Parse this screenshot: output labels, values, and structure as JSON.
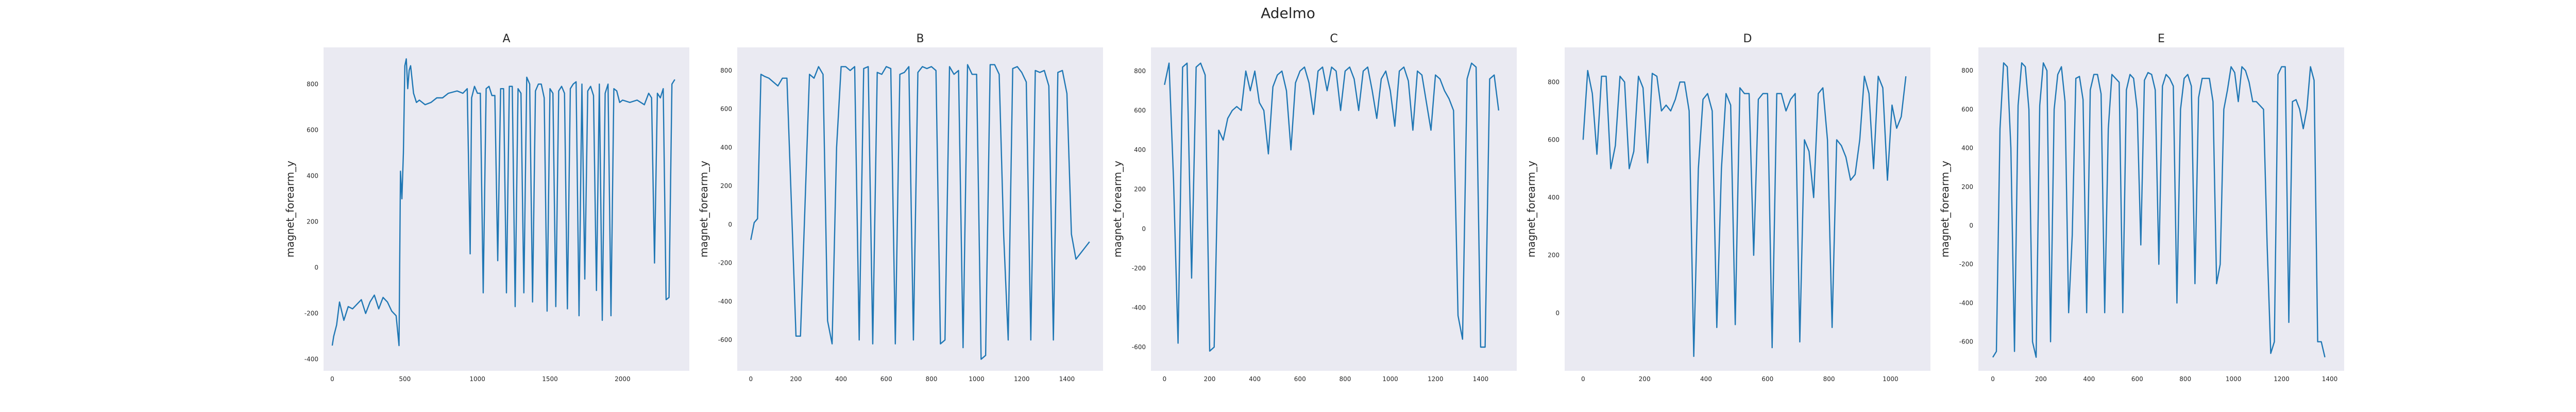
{
  "figure_title": "Adelmo",
  "colors": {
    "panel_bg": "#eaeaf2",
    "line": "#1f77b4",
    "text": "#262626"
  },
  "chart_data": [
    {
      "type": "line",
      "title": "A",
      "xlabel": "",
      "ylabel": "magnet_forearm_y",
      "grid": false,
      "xlim": [
        -60,
        2460
      ],
      "ylim": [
        -450,
        960
      ],
      "xticks": [
        0,
        500,
        1000,
        1500,
        2000
      ],
      "yticks": [
        -400,
        -200,
        0,
        200,
        400,
        600,
        800
      ],
      "x": [
        0,
        10,
        30,
        50,
        80,
        110,
        140,
        170,
        200,
        230,
        260,
        290,
        320,
        350,
        380,
        410,
        440,
        460,
        470,
        480,
        490,
        500,
        510,
        520,
        530,
        540,
        560,
        580,
        600,
        640,
        680,
        720,
        760,
        800,
        860,
        900,
        930,
        950,
        960,
        980,
        1000,
        1020,
        1040,
        1060,
        1080,
        1100,
        1120,
        1140,
        1160,
        1180,
        1200,
        1220,
        1240,
        1260,
        1280,
        1300,
        1320,
        1340,
        1360,
        1380,
        1400,
        1420,
        1440,
        1460,
        1480,
        1500,
        1520,
        1540,
        1560,
        1580,
        1600,
        1620,
        1640,
        1660,
        1680,
        1700,
        1720,
        1740,
        1760,
        1780,
        1800,
        1820,
        1840,
        1860,
        1880,
        1900,
        1920,
        1940,
        1960,
        1980,
        2000,
        2050,
        2100,
        2150,
        2180,
        2200,
        2220,
        2240,
        2260,
        2280,
        2300,
        2320,
        2340,
        2360
      ],
      "y": [
        -340,
        -300,
        -250,
        -150,
        -230,
        -170,
        -180,
        -160,
        -140,
        -200,
        -150,
        -120,
        -180,
        -130,
        -150,
        -190,
        -210,
        -340,
        420,
        300,
        500,
        880,
        910,
        780,
        860,
        880,
        760,
        720,
        730,
        710,
        720,
        740,
        740,
        760,
        770,
        760,
        780,
        60,
        740,
        790,
        760,
        760,
        -110,
        780,
        790,
        750,
        750,
        30,
        780,
        780,
        -110,
        790,
        790,
        -170,
        780,
        760,
        -110,
        830,
        800,
        -150,
        770,
        800,
        800,
        740,
        -190,
        780,
        760,
        -170,
        770,
        790,
        760,
        -180,
        780,
        800,
        810,
        -210,
        800,
        -50,
        770,
        790,
        750,
        -100,
        800,
        -230,
        760,
        800,
        -210,
        780,
        770,
        720,
        730,
        720,
        730,
        710,
        760,
        740,
        20,
        760,
        740,
        780,
        -140,
        -130,
        800,
        820
      ]
    },
    {
      "type": "line",
      "title": "B",
      "xlabel": "",
      "ylabel": "magnet_forearm_y",
      "grid": false,
      "xlim": [
        -60,
        1560
      ],
      "ylim": [
        -760,
        920
      ],
      "xticks": [
        0,
        200,
        400,
        600,
        800,
        1000,
        1200,
        1400
      ],
      "yticks": [
        -600,
        -400,
        -200,
        0,
        200,
        400,
        600,
        800
      ],
      "x": [
        0,
        15,
        30,
        45,
        60,
        80,
        100,
        120,
        140,
        160,
        180,
        200,
        220,
        240,
        260,
        280,
        300,
        320,
        340,
        360,
        380,
        400,
        420,
        440,
        460,
        480,
        500,
        520,
        540,
        560,
        580,
        600,
        620,
        640,
        660,
        680,
        700,
        720,
        740,
        760,
        780,
        800,
        820,
        840,
        860,
        880,
        900,
        920,
        940,
        960,
        980,
        1000,
        1020,
        1040,
        1060,
        1080,
        1100,
        1120,
        1140,
        1160,
        1180,
        1200,
        1220,
        1240,
        1260,
        1280,
        1300,
        1320,
        1340,
        1360,
        1380,
        1400,
        1420,
        1440,
        1460,
        1480,
        1500
      ],
      "y": [
        -80,
        10,
        30,
        780,
        770,
        760,
        740,
        720,
        760,
        760,
        100,
        -580,
        -580,
        100,
        780,
        760,
        820,
        780,
        -500,
        -620,
        400,
        820,
        820,
        800,
        820,
        -600,
        810,
        820,
        -620,
        790,
        780,
        820,
        810,
        -620,
        780,
        790,
        820,
        -600,
        790,
        820,
        810,
        820,
        800,
        -620,
        -600,
        820,
        780,
        800,
        -640,
        830,
        780,
        780,
        -700,
        -680,
        830,
        830,
        780,
        -60,
        -600,
        810,
        820,
        790,
        740,
        -600,
        800,
        790,
        800,
        720,
        -600,
        790,
        800,
        680,
        -50,
        -180,
        -150,
        -120,
        -90
      ]
    },
    {
      "type": "line",
      "title": "C",
      "xlabel": "",
      "ylabel": "magnet_forearm_y",
      "grid": false,
      "xlim": [
        -60,
        1560
      ],
      "ylim": [
        -720,
        920
      ],
      "xticks": [
        0,
        200,
        400,
        600,
        800,
        1000,
        1200,
        1400
      ],
      "yticks": [
        -600,
        -400,
        -200,
        0,
        200,
        400,
        600,
        800
      ],
      "x": [
        0,
        20,
        40,
        60,
        80,
        100,
        120,
        140,
        160,
        180,
        200,
        220,
        240,
        260,
        280,
        300,
        320,
        340,
        360,
        380,
        400,
        420,
        440,
        460,
        480,
        500,
        520,
        540,
        560,
        580,
        600,
        620,
        640,
        660,
        680,
        700,
        720,
        740,
        760,
        780,
        800,
        820,
        840,
        860,
        880,
        900,
        920,
        940,
        960,
        980,
        1000,
        1020,
        1040,
        1060,
        1080,
        1100,
        1120,
        1140,
        1160,
        1180,
        1200,
        1220,
        1240,
        1260,
        1280,
        1300,
        1320,
        1340,
        1360,
        1380,
        1400,
        1420,
        1440,
        1460,
        1480
      ],
      "y": [
        730,
        840,
        250,
        -580,
        820,
        840,
        -250,
        820,
        840,
        780,
        -620,
        -600,
        500,
        450,
        560,
        600,
        620,
        600,
        800,
        700,
        800,
        640,
        600,
        380,
        720,
        780,
        800,
        700,
        400,
        740,
        800,
        820,
        740,
        580,
        800,
        820,
        700,
        820,
        800,
        600,
        800,
        820,
        760,
        600,
        800,
        820,
        700,
        560,
        760,
        800,
        700,
        520,
        800,
        820,
        750,
        500,
        800,
        780,
        640,
        500,
        780,
        760,
        700,
        660,
        600,
        -440,
        -560,
        760,
        840,
        820,
        -600,
        -600,
        760,
        780,
        600
      ]
    },
    {
      "type": "line",
      "title": "D",
      "xlabel": "",
      "ylabel": "magnet_forearm_y",
      "grid": false,
      "xlim": [
        -60,
        1130
      ],
      "ylim": [
        -200,
        920
      ],
      "xticks": [
        0,
        200,
        400,
        600,
        800,
        1000
      ],
      "yticks": [
        0,
        200,
        400,
        600,
        800
      ],
      "x": [
        0,
        15,
        30,
        45,
        60,
        75,
        90,
        105,
        120,
        135,
        150,
        165,
        180,
        195,
        210,
        225,
        240,
        255,
        270,
        285,
        300,
        315,
        330,
        345,
        360,
        375,
        390,
        405,
        420,
        435,
        450,
        465,
        480,
        495,
        510,
        525,
        540,
        555,
        570,
        585,
        600,
        615,
        630,
        645,
        660,
        675,
        690,
        705,
        720,
        735,
        750,
        765,
        780,
        795,
        810,
        825,
        840,
        855,
        870,
        885,
        900,
        915,
        930,
        945,
        960,
        975,
        990,
        1005,
        1020,
        1035,
        1050
      ],
      "y": [
        600,
        840,
        760,
        550,
        820,
        820,
        500,
        580,
        820,
        800,
        500,
        560,
        820,
        780,
        520,
        830,
        820,
        700,
        720,
        700,
        740,
        800,
        800,
        700,
        -150,
        500,
        740,
        760,
        700,
        -50,
        500,
        760,
        720,
        -40,
        780,
        760,
        760,
        200,
        740,
        760,
        760,
        -120,
        760,
        760,
        700,
        740,
        760,
        -100,
        600,
        560,
        400,
        760,
        780,
        600,
        -50,
        600,
        580,
        540,
        460,
        480,
        600,
        820,
        760,
        500,
        820,
        780,
        460,
        720,
        640,
        680,
        820
      ]
    },
    {
      "type": "line",
      "title": "E",
      "xlabel": "",
      "ylabel": "magnet_forearm_y",
      "grid": false,
      "xlim": [
        -60,
        1460
      ],
      "ylim": [
        -750,
        920
      ],
      "xticks": [
        0,
        200,
        400,
        600,
        800,
        1000,
        1200,
        1400
      ],
      "yticks": [
        -600,
        -400,
        -200,
        0,
        200,
        400,
        600,
        800
      ],
      "x": [
        0,
        15,
        30,
        45,
        60,
        75,
        90,
        105,
        120,
        135,
        150,
        165,
        180,
        195,
        210,
        225,
        240,
        255,
        270,
        285,
        300,
        315,
        330,
        345,
        360,
        375,
        390,
        405,
        420,
        435,
        450,
        465,
        480,
        495,
        510,
        525,
        540,
        555,
        570,
        585,
        600,
        615,
        630,
        645,
        660,
        675,
        690,
        705,
        720,
        735,
        750,
        765,
        780,
        795,
        810,
        825,
        840,
        855,
        870,
        885,
        900,
        915,
        930,
        945,
        960,
        975,
        990,
        1005,
        1020,
        1035,
        1050,
        1065,
        1080,
        1095,
        1110,
        1125,
        1140,
        1155,
        1170,
        1185,
        1200,
        1215,
        1230,
        1245,
        1260,
        1275,
        1290,
        1305,
        1320,
        1335,
        1350,
        1365,
        1380
      ],
      "y": [
        -680,
        -650,
        500,
        840,
        820,
        400,
        -650,
        620,
        840,
        820,
        600,
        -600,
        -680,
        620,
        840,
        800,
        -600,
        600,
        780,
        820,
        640,
        -450,
        -50,
        760,
        770,
        650,
        -450,
        700,
        780,
        780,
        680,
        -450,
        500,
        780,
        760,
        740,
        -450,
        700,
        780,
        760,
        600,
        -100,
        750,
        790,
        780,
        700,
        -200,
        720,
        780,
        760,
        720,
        -400,
        600,
        760,
        780,
        720,
        -300,
        660,
        760,
        760,
        760,
        640,
        -300,
        -200,
        600,
        700,
        820,
        790,
        640,
        820,
        800,
        740,
        640,
        640,
        620,
        600,
        -100,
        -660,
        -600,
        780,
        820,
        820,
        -500,
        640,
        650,
        600,
        500,
        600,
        820,
        750,
        -600,
        -600,
        -680
      ]
    }
  ]
}
